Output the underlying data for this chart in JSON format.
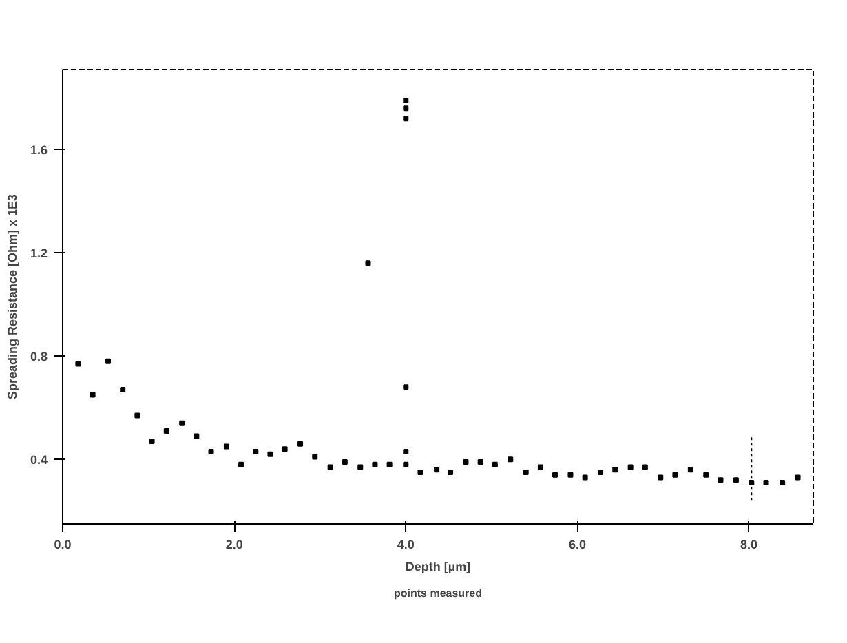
{
  "chart_data": {
    "type": "scatter",
    "xlabel": "Depth [µm]",
    "ylabel": "Spreading Resistance [Ohm] x 1E3",
    "annotations": [
      "points measured"
    ],
    "x": [
      0.18,
      0.35,
      0.53,
      0.7,
      0.87,
      1.04,
      1.21,
      1.39,
      1.56,
      1.73,
      1.91,
      2.08,
      2.25,
      2.42,
      2.59,
      2.77,
      2.94,
      3.12,
      3.29,
      3.47,
      3.56,
      3.64,
      3.81,
      4.0,
      4.0,
      4.0,
      4.0,
      4.0,
      4.0,
      4.17,
      4.36,
      4.52,
      4.7,
      4.87,
      5.04,
      5.22,
      5.4,
      5.57,
      5.74,
      5.92,
      6.09,
      6.27,
      6.44,
      6.62,
      6.79,
      6.97,
      7.14,
      7.32,
      7.5,
      7.67,
      7.85,
      8.03,
      8.2,
      8.39,
      8.57
    ],
    "series": [
      {
        "color": "#000000",
        "values": [
          0.77,
          0.65,
          0.78,
          0.67,
          0.57,
          0.47,
          0.51,
          0.54,
          0.49,
          0.43,
          0.45,
          0.38,
          0.43,
          0.42,
          0.44,
          0.46,
          0.41,
          0.37,
          0.39,
          0.37,
          1.16,
          0.38,
          0.38,
          1.79,
          1.76,
          1.72,
          0.68,
          0.43,
          0.38,
          0.35,
          0.36,
          0.35,
          0.39,
          0.39,
          0.38,
          0.4,
          0.35,
          0.37,
          0.34,
          0.34,
          0.33,
          0.35,
          0.36,
          0.37,
          0.37,
          0.33,
          0.34,
          0.36,
          0.34,
          0.32,
          0.32,
          0.31,
          0.31,
          0.31,
          0.33
        ],
        "errors": [
          null,
          null,
          null,
          null,
          null,
          null,
          null,
          null,
          null,
          null,
          null,
          null,
          null,
          null,
          null,
          null,
          null,
          null,
          null,
          null,
          null,
          null,
          null,
          null,
          null,
          null,
          null,
          null,
          null,
          null,
          null,
          null,
          null,
          null,
          null,
          null,
          null,
          null,
          null,
          null,
          null,
          null,
          null,
          null,
          null,
          null,
          null,
          null,
          null,
          null,
          null,
          [
            0.24,
            0.49
          ],
          null,
          null,
          null
        ]
      }
    ],
    "xlim": [
      0,
      8.75
    ],
    "ylim": [
      0.15,
      1.91
    ],
    "xticks": [
      {
        "value": 0,
        "label": "0.0"
      },
      {
        "value": 2,
        "label": "2.0"
      },
      {
        "value": 4,
        "label": "4.0"
      },
      {
        "value": 6,
        "label": "6.0"
      },
      {
        "value": 8,
        "label": "8.0"
      }
    ],
    "yticks": [
      0.4,
      0.8,
      1.2,
      1.6
    ],
    "grid": false,
    "marker": "square"
  }
}
